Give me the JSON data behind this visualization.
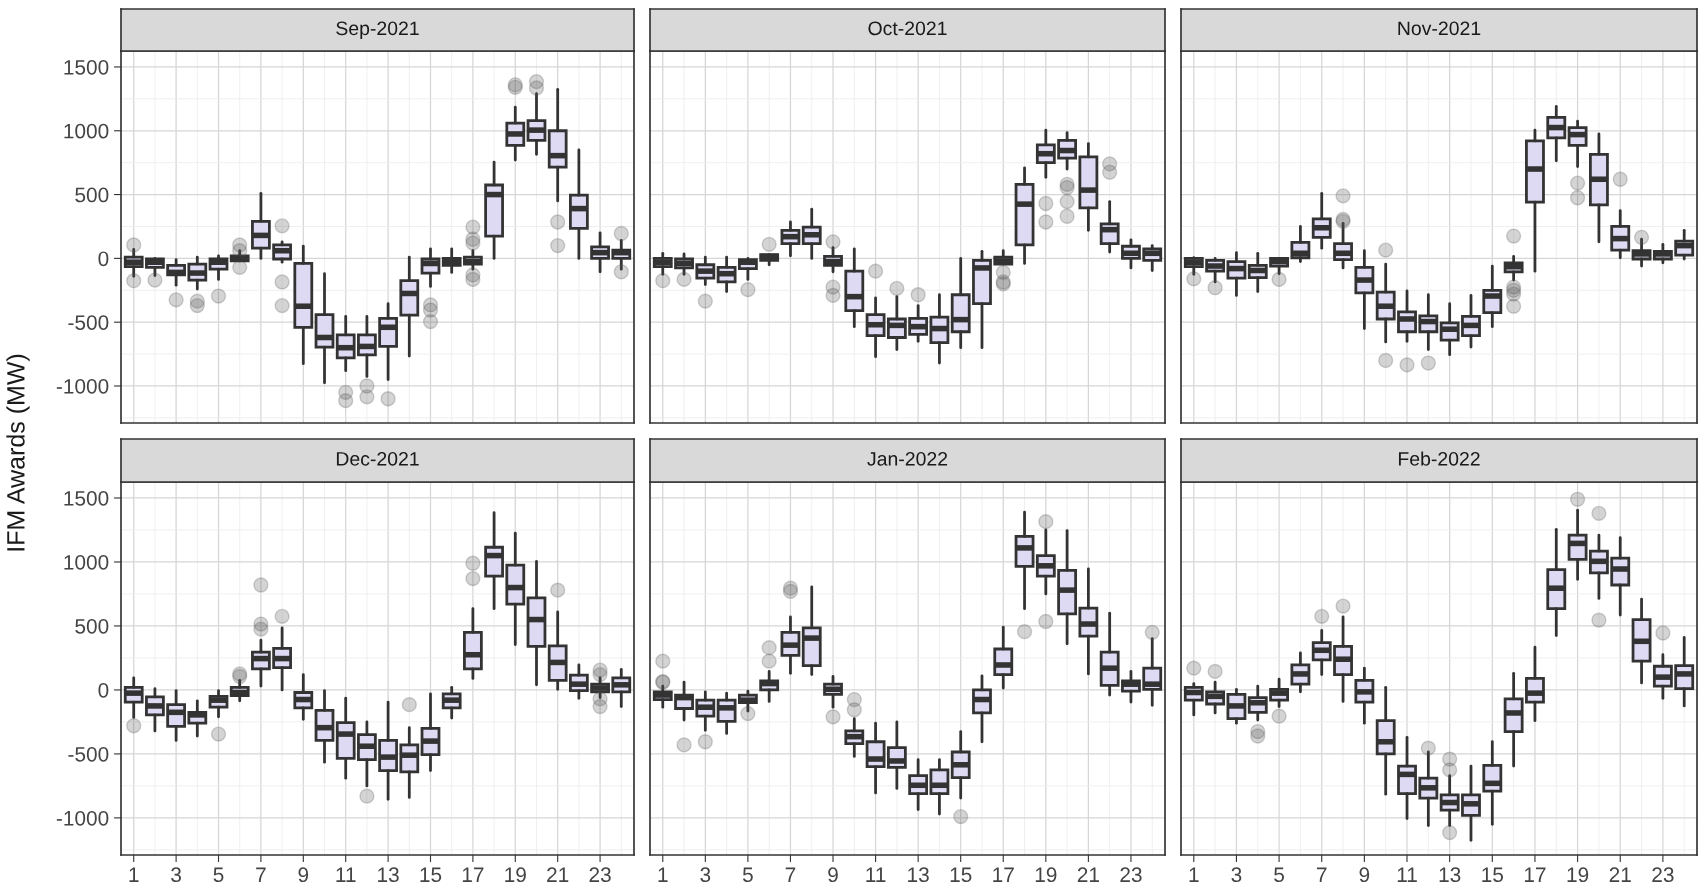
{
  "chart_data": [
    {
      "type": "box",
      "title": "Sep-2021",
      "ylabel": "IFM Awards (MW)",
      "categories": [
        "1",
        null,
        "3",
        null,
        "5",
        null,
        "7",
        null,
        "9",
        null,
        "11",
        null,
        "13",
        null,
        "15",
        null,
        "17",
        null,
        "19",
        null,
        "21",
        null,
        "23",
        null
      ],
      "ylim": [
        -1290,
        1625
      ],
      "yticks": [
        -1000,
        -500,
        0,
        500,
        1000,
        1500
      ],
      "grid": true,
      "tick_labels": "y",
      "series": [
        {
          "color": "#dedaf3",
          "boxes": [
            {
              "low": -140,
              "q1": -65,
              "median": -30,
              "q3": 10,
              "high": 70,
              "outliers": [
                105,
                -175
              ]
            },
            {
              "low": -135,
              "q1": -70,
              "median": -30,
              "q3": -5,
              "high": 0,
              "outliers": [
                -170
              ]
            },
            {
              "low": -210,
              "q1": -130,
              "median": -110,
              "q3": -55,
              "high": -10,
              "outliers": [
                -325
              ]
            },
            {
              "low": -240,
              "q1": -170,
              "median": -115,
              "q3": -45,
              "high": 10,
              "outliers": [
                -335,
                -370
              ]
            },
            {
              "low": -165,
              "q1": -85,
              "median": -30,
              "q3": -5,
              "high": 20,
              "outliers": [
                -295
              ]
            },
            {
              "low": -20,
              "q1": -20,
              "median": -5,
              "q3": 20,
              "high": 60,
              "outliers": [
                105,
                60,
                -70
              ]
            },
            {
              "low": 0,
              "q1": 80,
              "median": 180,
              "q3": 290,
              "high": 510
            },
            {
              "low": -30,
              "q1": -5,
              "median": 60,
              "q3": 105,
              "high": 130,
              "outliers": [
                255,
                -185,
                -370
              ]
            },
            {
              "low": -825,
              "q1": -540,
              "median": -375,
              "q3": -40,
              "high": 95
            },
            {
              "low": -975,
              "q1": -695,
              "median": -620,
              "q3": -440,
              "high": -120
            },
            {
              "low": -880,
              "q1": -780,
              "median": -700,
              "q3": -600,
              "high": -455,
              "outliers": [
                -1050,
                -1115
              ]
            },
            {
              "low": -925,
              "q1": -757,
              "median": -690,
              "q3": -600,
              "high": -455,
              "outliers": [
                -1000,
                -1085
              ]
            },
            {
              "low": -950,
              "q1": -690,
              "median": -540,
              "q3": -470,
              "high": -355,
              "outliers": [
                -1100
              ]
            },
            {
              "low": -765,
              "q1": -445,
              "median": -275,
              "q3": -175,
              "high": 10
            },
            {
              "low": -220,
              "q1": -115,
              "median": -40,
              "q3": -5,
              "high": 75,
              "outliers": [
                -365,
                -405,
                -495
              ]
            },
            {
              "low": -110,
              "q1": -55,
              "median": -25,
              "q3": 0,
              "high": 75
            },
            {
              "low": -85,
              "q1": -45,
              "median": -25,
              "q3": 10,
              "high": 60,
              "outliers": [
                245,
                150,
                120,
                -130,
                -165
              ]
            },
            {
              "low": 0,
              "q1": 175,
              "median": 500,
              "q3": 575,
              "high": 755
            },
            {
              "low": 770,
              "q1": 885,
              "median": 975,
              "q3": 1060,
              "high": 1185,
              "outliers": [
                1360,
                1340
              ]
            },
            {
              "low": 815,
              "q1": 925,
              "median": 1005,
              "q3": 1080,
              "high": 1290,
              "outliers": [
                1385,
                1335
              ]
            },
            {
              "low": 450,
              "q1": 715,
              "median": 805,
              "q3": 1000,
              "high": 1325,
              "outliers": [
                285,
                100
              ]
            },
            {
              "low": 0,
              "q1": 235,
              "median": 390,
              "q3": 495,
              "high": 850
            },
            {
              "low": -105,
              "q1": 0,
              "median": 45,
              "q3": 90,
              "high": 200
            },
            {
              "low": -85,
              "q1": 0,
              "median": 45,
              "q3": 65,
              "high": 140,
              "outliers": [
                195,
                -105
              ]
            }
          ]
        }
      ]
    },
    {
      "type": "box",
      "title": "Oct-2021",
      "categories": [
        "1",
        null,
        "3",
        null,
        "5",
        null,
        "7",
        null,
        "9",
        null,
        "11",
        null,
        "13",
        null,
        "15",
        null,
        "17",
        null,
        "19",
        null,
        "21",
        null,
        "23",
        null
      ],
      "ylim": [
        -1290,
        1625
      ],
      "yticks": [
        -1000,
        -500,
        0,
        500,
        1000,
        1500
      ],
      "grid": true,
      "tick_labels": false,
      "series": [
        {
          "color": "#dedaf3",
          "boxes": [
            {
              "low": -125,
              "q1": -65,
              "median": -30,
              "q3": 0,
              "high": 40,
              "outliers": [
                -175
              ]
            },
            {
              "low": -125,
              "q1": -75,
              "median": -40,
              "q3": -5,
              "high": 35,
              "outliers": [
                -165
              ]
            },
            {
              "low": -205,
              "q1": -155,
              "median": -100,
              "q3": -50,
              "high": 10,
              "outliers": [
                -335
              ]
            },
            {
              "low": -260,
              "q1": -185,
              "median": -120,
              "q3": -70,
              "high": 10
            },
            {
              "low": -165,
              "q1": -80,
              "median": -30,
              "q3": -10,
              "high": 0,
              "outliers": [
                -245
              ]
            },
            {
              "low": -50,
              "q1": -15,
              "median": 15,
              "q3": 30,
              "high": 30,
              "outliers": [
                110
              ]
            },
            {
              "low": 20,
              "q1": 115,
              "median": 170,
              "q3": 220,
              "high": 285
            },
            {
              "low": 0,
              "q1": 115,
              "median": 185,
              "q3": 245,
              "high": 385
            },
            {
              "low": -105,
              "q1": -55,
              "median": -25,
              "q3": 15,
              "high": 85,
              "outliers": [
                130,
                -225,
                -290
              ]
            },
            {
              "low": -535,
              "q1": -410,
              "median": -300,
              "q3": -100,
              "high": 75
            },
            {
              "low": -770,
              "q1": -605,
              "median": -520,
              "q3": -440,
              "high": -310,
              "outliers": [
                -100
              ]
            },
            {
              "low": -715,
              "q1": -620,
              "median": -525,
              "q3": -475,
              "high": -300,
              "outliers": [
                -235
              ]
            },
            {
              "low": -650,
              "q1": -595,
              "median": -535,
              "q3": -470,
              "high": -370,
              "outliers": [
                -285
              ]
            },
            {
              "low": -820,
              "q1": -660,
              "median": -550,
              "q3": -460,
              "high": -285
            },
            {
              "low": -700,
              "q1": -575,
              "median": -480,
              "q3": -285,
              "high": 0
            },
            {
              "low": -700,
              "q1": -355,
              "median": -75,
              "q3": -15,
              "high": 55
            },
            {
              "low": -45,
              "q1": -45,
              "median": -20,
              "q3": 10,
              "high": 60,
              "outliers": [
                -110,
                -185,
                -200
              ]
            },
            {
              "low": -40,
              "q1": 105,
              "median": 425,
              "q3": 580,
              "high": 710
            },
            {
              "low": 635,
              "q1": 750,
              "median": 820,
              "q3": 890,
              "high": 1005,
              "outliers": [
                430,
                285
              ]
            },
            {
              "low": 700,
              "q1": 785,
              "median": 845,
              "q3": 925,
              "high": 985,
              "outliers": [
                580,
                555,
                445,
                330
              ]
            },
            {
              "low": 220,
              "q1": 395,
              "median": 535,
              "q3": 795,
              "high": 900
            },
            {
              "low": 50,
              "q1": 115,
              "median": 225,
              "q3": 270,
              "high": 445,
              "outliers": [
                740,
                675
              ]
            },
            {
              "low": -75,
              "q1": 0,
              "median": 40,
              "q3": 95,
              "high": 145
            },
            {
              "low": -95,
              "q1": -15,
              "median": 40,
              "q3": 75,
              "high": 100
            }
          ]
        }
      ]
    },
    {
      "type": "box",
      "title": "Nov-2021",
      "categories": [
        "1",
        null,
        "3",
        null,
        "5",
        null,
        "7",
        null,
        "9",
        null,
        "11",
        null,
        "13",
        null,
        "15",
        null,
        "17",
        null,
        "19",
        null,
        "21",
        null,
        "23",
        null
      ],
      "ylim": [
        -1290,
        1625
      ],
      "yticks": [
        -1000,
        -500,
        0,
        500,
        1000,
        1500
      ],
      "grid": true,
      "tick_labels": false,
      "series": [
        {
          "color": "#dedaf3",
          "boxes": [
            {
              "low": -125,
              "q1": -65,
              "median": -30,
              "q3": 0,
              "high": 5,
              "outliers": [
                -160
              ]
            },
            {
              "low": -185,
              "q1": -100,
              "median": -60,
              "q3": -15,
              "high": 0,
              "outliers": [
                -230
              ]
            },
            {
              "low": -290,
              "q1": -155,
              "median": -80,
              "q3": -25,
              "high": 45
            },
            {
              "low": -260,
              "q1": -150,
              "median": -95,
              "q3": -55,
              "high": 40
            },
            {
              "low": -120,
              "q1": -60,
              "median": -25,
              "q3": 0,
              "high": 0,
              "outliers": [
                -165
              ]
            },
            {
              "low": -25,
              "q1": 5,
              "median": 40,
              "q3": 125,
              "high": 250
            },
            {
              "low": 80,
              "q1": 165,
              "median": 240,
              "q3": 310,
              "high": 510
            },
            {
              "low": -75,
              "q1": -10,
              "median": 40,
              "q3": 115,
              "high": 275,
              "outliers": [
                490,
                305,
                290
              ]
            },
            {
              "low": -550,
              "q1": -270,
              "median": -170,
              "q3": -70,
              "high": 60
            },
            {
              "low": -655,
              "q1": -475,
              "median": -375,
              "q3": -265,
              "high": -45,
              "outliers": [
                65,
                -800
              ]
            },
            {
              "low": -650,
              "q1": -575,
              "median": -475,
              "q3": -420,
              "high": -255,
              "outliers": [
                -835
              ]
            },
            {
              "low": -715,
              "q1": -575,
              "median": -495,
              "q3": -450,
              "high": -285,
              "outliers": [
                -820
              ]
            },
            {
              "low": -755,
              "q1": -640,
              "median": -555,
              "q3": -505,
              "high": -355
            },
            {
              "low": -695,
              "q1": -605,
              "median": -525,
              "q3": -455,
              "high": -290
            },
            {
              "low": -535,
              "q1": -425,
              "median": -295,
              "q3": -250,
              "high": -60
            },
            {
              "low": -170,
              "q1": -105,
              "median": -65,
              "q3": -35,
              "high": 15,
              "outliers": [
                175,
                -225,
                -250,
                -280,
                -375
              ]
            },
            {
              "low": -100,
              "q1": 440,
              "median": 700,
              "q3": 920,
              "high": 1005
            },
            {
              "low": 765,
              "q1": 945,
              "median": 1025,
              "q3": 1105,
              "high": 1190
            },
            {
              "low": 720,
              "q1": 885,
              "median": 970,
              "q3": 1025,
              "high": 1075,
              "outliers": [
                590,
                475
              ]
            },
            {
              "low": 130,
              "q1": 420,
              "median": 620,
              "q3": 815,
              "high": 975
            },
            {
              "low": 5,
              "q1": 65,
              "median": 155,
              "q3": 250,
              "high": 375,
              "outliers": [
                620
              ]
            },
            {
              "low": -60,
              "q1": -5,
              "median": 35,
              "q3": 60,
              "high": 150,
              "outliers": [
                165
              ]
            },
            {
              "low": -35,
              "q1": -5,
              "median": 35,
              "q3": 55,
              "high": 110
            },
            {
              "low": -5,
              "q1": 25,
              "median": 100,
              "q3": 135,
              "high": 220
            }
          ]
        }
      ]
    },
    {
      "type": "box",
      "title": "Dec-2021",
      "categories": [
        "1",
        null,
        "3",
        null,
        "5",
        null,
        "7",
        null,
        "9",
        null,
        "11",
        null,
        "13",
        null,
        "15",
        null,
        "17",
        null,
        "19",
        null,
        "21",
        null,
        "23",
        null
      ],
      "ylim": [
        -1290,
        1625
      ],
      "yticks": [
        -1000,
        -500,
        0,
        500,
        1000,
        1500
      ],
      "grid": true,
      "series": [
        {
          "color": "#dedaf3",
          "boxes": [
            {
              "low": -215,
              "q1": -95,
              "median": -25,
              "q3": 20,
              "high": 95,
              "outliers": [
                -280
              ]
            },
            {
              "low": -320,
              "q1": -195,
              "median": -125,
              "q3": -55,
              "high": 10
            },
            {
              "low": -395,
              "q1": -285,
              "median": -175,
              "q3": -115,
              "high": -5
            },
            {
              "low": -360,
              "q1": -260,
              "median": -195,
              "q3": -175,
              "high": -85
            },
            {
              "low": -210,
              "q1": -135,
              "median": -80,
              "q3": -50,
              "high": -5,
              "outliers": [
                -345
              ]
            },
            {
              "low": -85,
              "q1": -45,
              "median": -20,
              "q3": 20,
              "high": 75,
              "outliers": [
                125,
                105
              ]
            },
            {
              "low": 30,
              "q1": 165,
              "median": 245,
              "q3": 295,
              "high": 390,
              "outliers": [
                820,
                515,
                475
              ]
            },
            {
              "low": 0,
              "q1": 175,
              "median": 245,
              "q3": 325,
              "high": 485,
              "outliers": [
                575
              ]
            },
            {
              "low": -230,
              "q1": -140,
              "median": -75,
              "q3": -20,
              "high": 120
            },
            {
              "low": -565,
              "q1": -395,
              "median": -295,
              "q3": -160,
              "high": -5
            },
            {
              "low": -690,
              "q1": -535,
              "median": -345,
              "q3": -255,
              "high": -65
            },
            {
              "low": -750,
              "q1": -545,
              "median": -440,
              "q3": -350,
              "high": -250,
              "outliers": [
                -830
              ]
            },
            {
              "low": -855,
              "q1": -630,
              "median": -525,
              "q3": -395,
              "high": -95
            },
            {
              "low": -840,
              "q1": -640,
              "median": -510,
              "q3": -430,
              "high": -295,
              "outliers": [
                -115
              ]
            },
            {
              "low": -630,
              "q1": -505,
              "median": -400,
              "q3": -300,
              "high": -30
            },
            {
              "low": -220,
              "q1": -140,
              "median": -80,
              "q3": -30,
              "high": 20
            },
            {
              "low": 90,
              "q1": 165,
              "median": 275,
              "q3": 450,
              "high": 635,
              "outliers": [
                990,
                870
              ]
            },
            {
              "low": 635,
              "q1": 890,
              "median": 1050,
              "q3": 1115,
              "high": 1385
            },
            {
              "low": 355,
              "q1": 670,
              "median": 800,
              "q3": 975,
              "high": 1225
            },
            {
              "low": 40,
              "q1": 340,
              "median": 550,
              "q3": 720,
              "high": 1005
            },
            {
              "low": 5,
              "q1": 75,
              "median": 215,
              "q3": 345,
              "high": 610,
              "outliers": [
                780
              ]
            },
            {
              "low": -65,
              "q1": -5,
              "median": 45,
              "q3": 115,
              "high": 195
            },
            {
              "low": -60,
              "q1": -15,
              "median": 15,
              "q3": 45,
              "high": 95,
              "outliers": [
                155,
                120,
                -70,
                -130
              ]
            },
            {
              "low": -130,
              "q1": -15,
              "median": 40,
              "q3": 95,
              "high": 160
            }
          ]
        }
      ]
    },
    {
      "type": "box",
      "title": "Jan-2022",
      "categories": [
        "1",
        null,
        "3",
        null,
        "5",
        null,
        "7",
        null,
        "9",
        null,
        "11",
        null,
        "13",
        null,
        "15",
        null,
        "17",
        null,
        "19",
        null,
        "21",
        null,
        "23",
        null
      ],
      "ylim": [
        -1290,
        1625
      ],
      "yticks": [
        -1000,
        -500,
        0,
        500,
        1000,
        1500
      ],
      "grid": true,
      "tick_labels": "x",
      "series": [
        {
          "color": "#dedaf3",
          "boxes": [
            {
              "low": -135,
              "q1": -75,
              "median": -40,
              "q3": -15,
              "high": 30,
              "outliers": [
                225,
                65,
                60
              ]
            },
            {
              "low": -235,
              "q1": -145,
              "median": -60,
              "q3": -40,
              "high": 60,
              "outliers": [
                -430
              ]
            },
            {
              "low": -315,
              "q1": -205,
              "median": -135,
              "q3": -80,
              "high": -15,
              "outliers": [
                -405
              ]
            },
            {
              "low": -340,
              "q1": -245,
              "median": -140,
              "q3": -80,
              "high": -25
            },
            {
              "low": -165,
              "q1": -100,
              "median": -80,
              "q3": -40,
              "high": -10,
              "outliers": [
                -185
              ]
            },
            {
              "low": -90,
              "q1": 0,
              "median": 50,
              "q3": 70,
              "high": 145,
              "outliers": [
                330,
                225
              ]
            },
            {
              "low": 130,
              "q1": 270,
              "median": 350,
              "q3": 450,
              "high": 570,
              "outliers": [
                795,
                770
              ]
            },
            {
              "low": 120,
              "q1": 190,
              "median": 405,
              "q3": 485,
              "high": 805
            },
            {
              "low": -135,
              "q1": -35,
              "median": 5,
              "q3": 45,
              "high": 105,
              "outliers": [
                -210
              ]
            },
            {
              "low": -520,
              "q1": -420,
              "median": -365,
              "q3": -320,
              "high": -225,
              "outliers": [
                -75,
                -155
              ]
            },
            {
              "low": -805,
              "q1": -600,
              "median": -540,
              "q3": -405,
              "high": -260
            },
            {
              "low": -770,
              "q1": -605,
              "median": -555,
              "q3": -450,
              "high": -250
            },
            {
              "low": -935,
              "q1": -810,
              "median": -745,
              "q3": -670,
              "high": -545
            },
            {
              "low": -970,
              "q1": -810,
              "median": -745,
              "q3": -625,
              "high": -545
            },
            {
              "low": -845,
              "q1": -685,
              "median": -585,
              "q3": -485,
              "high": -325,
              "outliers": [
                -990
              ]
            },
            {
              "low": -405,
              "q1": -180,
              "median": -75,
              "q3": 0,
              "high": 110
            },
            {
              "low": 15,
              "q1": 120,
              "median": 195,
              "q3": 320,
              "high": 490
            },
            {
              "low": 635,
              "q1": 965,
              "median": 1110,
              "q3": 1200,
              "high": 1390,
              "outliers": [
                455
              ]
            },
            {
              "low": 750,
              "q1": 890,
              "median": 970,
              "q3": 1050,
              "high": 1250,
              "outliers": [
                1315,
                535
              ]
            },
            {
              "low": 360,
              "q1": 595,
              "median": 780,
              "q3": 935,
              "high": 1245
            },
            {
              "low": 125,
              "q1": 420,
              "median": 515,
              "q3": 640,
              "high": 945
            },
            {
              "low": -40,
              "q1": 35,
              "median": 170,
              "q3": 295,
              "high": 600
            },
            {
              "low": -95,
              "q1": -10,
              "median": 45,
              "q3": 70,
              "high": 145
            },
            {
              "low": -120,
              "q1": 5,
              "median": 45,
              "q3": 170,
              "high": 400,
              "outliers": [
                450
              ]
            }
          ]
        }
      ]
    },
    {
      "type": "box",
      "title": "Feb-2022",
      "categories": [
        "1",
        null,
        "3",
        null,
        "5",
        null,
        "7",
        null,
        "9",
        null,
        "11",
        null,
        "13",
        null,
        "15",
        null,
        "17",
        null,
        "19",
        null,
        "21",
        null,
        "23",
        null
      ],
      "ylim": [
        -1290,
        1625
      ],
      "yticks": [
        -1000,
        -500,
        0,
        500,
        1000,
        1500
      ],
      "grid": true,
      "tick_labels": "x",
      "series": [
        {
          "color": "#dedaf3",
          "boxes": [
            {
              "low": -195,
              "q1": -80,
              "median": -20,
              "q3": 20,
              "high": 50,
              "outliers": [
                170
              ]
            },
            {
              "low": -180,
              "q1": -110,
              "median": -50,
              "q3": -15,
              "high": 60,
              "outliers": [
                145
              ]
            },
            {
              "low": -260,
              "q1": -225,
              "median": -125,
              "q3": -35,
              "high": 5
            },
            {
              "low": -235,
              "q1": -175,
              "median": -100,
              "q3": -60,
              "high": 30,
              "outliers": [
                -325,
                -360
              ]
            },
            {
              "low": -130,
              "q1": -80,
              "median": -25,
              "q3": 5,
              "high": 85,
              "outliers": [
                -205
              ]
            },
            {
              "low": -15,
              "q1": 45,
              "median": 125,
              "q3": 195,
              "high": 290
            },
            {
              "low": 120,
              "q1": 235,
              "median": 310,
              "q3": 370,
              "high": 465,
              "outliers": [
                575
              ]
            },
            {
              "low": -90,
              "q1": 120,
              "median": 240,
              "q3": 340,
              "high": 570,
              "outliers": [
                655
              ]
            },
            {
              "low": -260,
              "q1": -95,
              "median": -15,
              "q3": 75,
              "high": 170
            },
            {
              "low": -815,
              "q1": -500,
              "median": -405,
              "q3": -240,
              "high": 20
            },
            {
              "low": -1005,
              "q1": -810,
              "median": -660,
              "q3": -595,
              "high": -370
            },
            {
              "low": -1060,
              "q1": -845,
              "median": -765,
              "q3": -690,
              "high": -485,
              "outliers": [
                -455
              ]
            },
            {
              "low": -1060,
              "q1": -940,
              "median": -880,
              "q3": -820,
              "high": -670,
              "outliers": [
                -540,
                -625,
                -1115
              ]
            },
            {
              "low": -1175,
              "q1": -980,
              "median": -890,
              "q3": -820,
              "high": -595
            },
            {
              "low": -1050,
              "q1": -790,
              "median": -730,
              "q3": -590,
              "high": -405
            },
            {
              "low": -595,
              "q1": -325,
              "median": -180,
              "q3": -70,
              "high": 130
            },
            {
              "low": -240,
              "q1": -95,
              "median": -25,
              "q3": 90,
              "high": 335
            },
            {
              "low": 425,
              "q1": 635,
              "median": 795,
              "q3": 940,
              "high": 1255
            },
            {
              "low": 865,
              "q1": 1020,
              "median": 1145,
              "q3": 1210,
              "high": 1405,
              "outliers": [
                1490
              ]
            },
            {
              "low": 715,
              "q1": 915,
              "median": 1005,
              "q3": 1085,
              "high": 1210,
              "outliers": [
                1380,
                545
              ]
            },
            {
              "low": 585,
              "q1": 820,
              "median": 945,
              "q3": 1030,
              "high": 1190
            },
            {
              "low": 55,
              "q1": 225,
              "median": 380,
              "q3": 550,
              "high": 710
            },
            {
              "low": -65,
              "q1": 30,
              "median": 100,
              "q3": 185,
              "high": 275,
              "outliers": [
                445
              ]
            },
            {
              "low": -125,
              "q1": 10,
              "median": 125,
              "q3": 190,
              "high": 410
            }
          ]
        }
      ]
    }
  ]
}
